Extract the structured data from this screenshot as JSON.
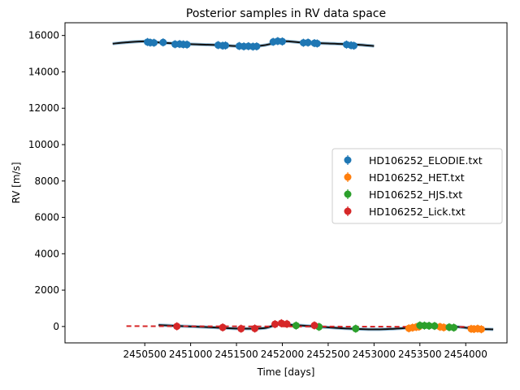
{
  "chart_data": {
    "type": "scatter",
    "title": "Posterior samples in RV data space",
    "xlabel": "Time [days]",
    "ylabel": "RV [m/s]",
    "xlim": [
      2449630,
      2454450
    ],
    "ylim": [
      -900,
      16700
    ],
    "xticks": [
      2450500,
      2451000,
      2451500,
      2452000,
      2452500,
      2453000,
      2453500,
      2454000
    ],
    "xtick_labels": [
      "2450500",
      "2451000",
      "2451500",
      "2452000",
      "2452500",
      "2453000",
      "2453500",
      "2454000"
    ],
    "yticks": [
      0,
      2000,
      4000,
      6000,
      8000,
      10000,
      12000,
      14000,
      16000
    ],
    "ytick_labels": [
      "0",
      "2000",
      "4000",
      "6000",
      "8000",
      "10000",
      "12000",
      "14000",
      "16000"
    ],
    "legend_position": "center-right",
    "series": [
      {
        "name": "HD106252_ELODIE.txt",
        "color": "#1f77b4",
        "x": [
          2450530,
          2450560,
          2450600,
          2450700,
          2450830,
          2450880,
          2450920,
          2450960,
          2451300,
          2451350,
          2451380,
          2451530,
          2451580,
          2451630,
          2451680,
          2451720,
          2451900,
          2451950,
          2452000,
          2452230,
          2452280,
          2452350,
          2452380,
          2452700,
          2452750,
          2452780
        ],
        "y": [
          15640,
          15610,
          15600,
          15620,
          15520,
          15530,
          15510,
          15500,
          15470,
          15440,
          15450,
          15420,
          15400,
          15410,
          15390,
          15400,
          15650,
          15690,
          15670,
          15600,
          15610,
          15580,
          15560,
          15500,
          15460,
          15440
        ]
      },
      {
        "name": "HD106252_HET.txt",
        "color": "#ff7f0e",
        "x": [
          2453380,
          2453420,
          2453460,
          2453490,
          2453720,
          2453760,
          2454060,
          2454090,
          2454130,
          2454170
        ],
        "y": [
          -100,
          -60,
          -30,
          -10,
          -20,
          -50,
          -130,
          -140,
          -120,
          -150
        ]
      },
      {
        "name": "HD106252_HJS.txt",
        "color": "#2ca02c",
        "x": [
          2452150,
          2452400,
          2452800,
          2453500,
          2453550,
          2453600,
          2453660,
          2453820,
          2453870
        ],
        "y": [
          50,
          -20,
          -120,
          60,
          50,
          40,
          30,
          -40,
          -60
        ]
      },
      {
        "name": "HD106252_Lick.txt",
        "color": "#d62728",
        "x": [
          2450850,
          2451350,
          2451550,
          2451700,
          2451920,
          2451990,
          2452050,
          2452350
        ],
        "y": [
          10,
          -50,
          -120,
          -110,
          130,
          180,
          140,
          60
        ]
      }
    ],
    "model_curves": [
      {
        "name": "elodie_model",
        "color": "#111111",
        "x": [
          2450150,
          2450300,
          2450500,
          2450700,
          2451000,
          2451300,
          2451600,
          2451800,
          2452000,
          2452200,
          2452500,
          2452800,
          2453000
        ],
        "y": [
          15550,
          15620,
          15680,
          15600,
          15520,
          15470,
          15400,
          15460,
          15680,
          15620,
          15560,
          15500,
          15420
        ]
      },
      {
        "name": "low_model",
        "color": "#111111",
        "x": [
          2450650,
          2450900,
          2451200,
          2451500,
          2451800,
          2451950,
          2452100,
          2452400,
          2452700,
          2453000,
          2453300,
          2453600,
          2453900,
          2454100,
          2454300
        ],
        "y": [
          80,
          20,
          -40,
          -110,
          -90,
          120,
          90,
          -10,
          -110,
          -160,
          -100,
          20,
          -20,
          -120,
          -160
        ]
      },
      {
        "name": "red_dashed_offset",
        "color": "#d62728",
        "dashed": true,
        "x": [
          2450300,
          2454200
        ],
        "y": [
          20,
          -20
        ]
      }
    ]
  }
}
